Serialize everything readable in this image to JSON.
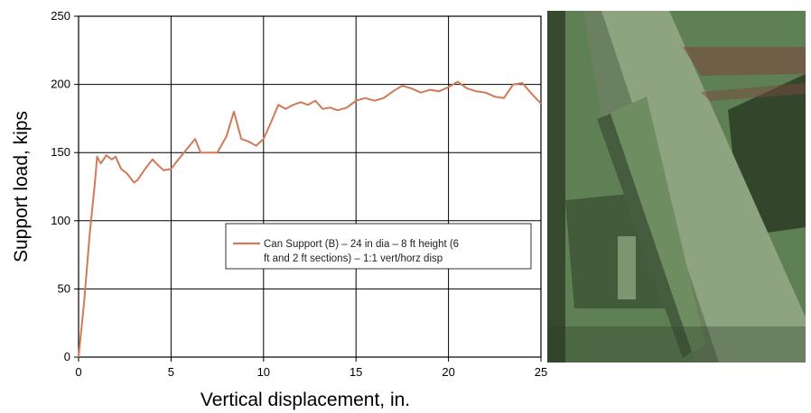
{
  "chart_data": {
    "type": "line",
    "title": "",
    "xlabel": "Vertical displacement, in.",
    "ylabel": "Support load, kips",
    "xlim": [
      0,
      25
    ],
    "ylim": [
      0,
      250
    ],
    "x_ticks": [
      "0",
      "5",
      "10",
      "15",
      "20",
      "25"
    ],
    "y_ticks": [
      "0",
      "50",
      "100",
      "150",
      "200",
      "250"
    ],
    "grid": true,
    "legend_position": "center-right inside plot",
    "series": [
      {
        "name": "Can Support (B) – 24 in dia – 8 ft height (6 ft and 2 ft sections) – 1:1 vert/horz disp",
        "name_line1": "Can Support (B) – 24 in dia – 8 ft height (6",
        "name_line2": "ft and 2 ft sections) – 1:1 vert/horz disp",
        "color": "#d07a58",
        "x": [
          0,
          0.3,
          0.6,
          0.9,
          1.0,
          1.2,
          1.5,
          1.8,
          2.0,
          2.3,
          2.6,
          3.0,
          3.2,
          3.6,
          4.0,
          4.2,
          4.6,
          5.0,
          5.4,
          6.0,
          6.3,
          6.6,
          7.0,
          7.5,
          8.0,
          8.4,
          8.8,
          9.2,
          9.6,
          10.0,
          10.4,
          10.8,
          11.2,
          11.6,
          12.0,
          12.4,
          12.8,
          13.2,
          13.6,
          14.0,
          14.5,
          15.0,
          15.5,
          16.0,
          16.5,
          17.0,
          17.5,
          18.0,
          18.5,
          19.0,
          19.5,
          20.0,
          20.5,
          21.0,
          21.5,
          22.0,
          22.5,
          23.0,
          23.5,
          24.0,
          24.5,
          25.0
        ],
        "y": [
          0,
          40,
          90,
          130,
          147,
          142,
          148,
          145,
          147,
          138,
          135,
          128,
          130,
          138,
          145,
          142,
          137,
          138,
          145,
          155,
          160,
          150,
          150,
          150,
          162,
          180,
          160,
          158,
          155,
          160,
          172,
          185,
          182,
          185,
          187,
          185,
          188,
          182,
          183,
          181,
          183,
          188,
          190,
          188,
          190,
          195,
          199,
          197,
          194,
          196,
          195,
          198,
          202,
          197,
          195,
          194,
          191,
          190,
          200,
          201,
          193,
          186
        ]
      }
    ]
  },
  "photo": {
    "colors": {
      "base": "#5f7f54",
      "dark": "#2c3c26",
      "light": "#8ea481",
      "rust": "#7a4a3e"
    }
  }
}
